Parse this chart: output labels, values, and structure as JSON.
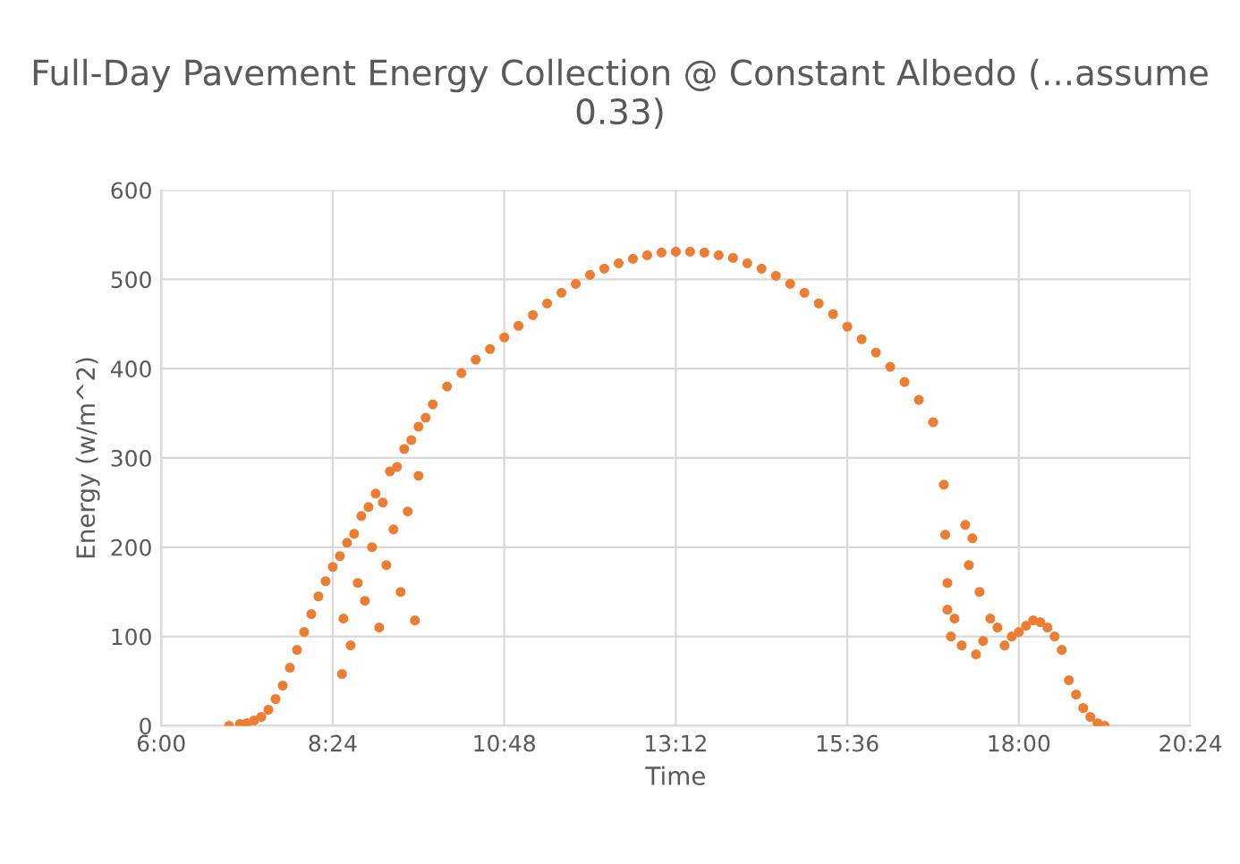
{
  "chart_data": {
    "type": "scatter",
    "title": "Full-Day Pavement Energy Collection @ Constant Albedo (...assume 0.33)",
    "xlabel": "Time",
    "ylabel": "Energy (w/m^2)",
    "marker": "circle",
    "grid": true,
    "legend": false,
    "xlim": [
      6,
      20.4
    ],
    "xticks": [
      {
        "value": 6,
        "label": "6:00"
      },
      {
        "value": 8.4,
        "label": "8:24"
      },
      {
        "value": 10.8,
        "label": "10:48"
      },
      {
        "value": 13.2,
        "label": "13:12"
      },
      {
        "value": 15.6,
        "label": "15:36"
      },
      {
        "value": 18,
        "label": "18:00"
      },
      {
        "value": 20.4,
        "label": "20:24"
      }
    ],
    "ylim": [
      0,
      600
    ],
    "yticks": [
      0,
      100,
      200,
      300,
      400,
      500,
      600
    ],
    "series": [
      {
        "color": "#ed7d31",
        "x": [
          6.95,
          7.1,
          7.2,
          7.3,
          7.4,
          7.5,
          7.6,
          7.7,
          7.8,
          7.9,
          8.0,
          8.1,
          8.2,
          8.3,
          8.4,
          8.5,
          8.53,
          8.55,
          8.6,
          8.65,
          8.7,
          8.75,
          8.8,
          8.85,
          8.9,
          8.95,
          9.0,
          9.05,
          9.1,
          9.15,
          9.2,
          9.25,
          9.3,
          9.35,
          9.4,
          9.45,
          9.5,
          9.55,
          9.6,
          9.6,
          9.7,
          9.8,
          10.0,
          10.2,
          10.4,
          10.6,
          10.8,
          11.0,
          11.2,
          11.4,
          11.6,
          11.8,
          12.0,
          12.2,
          12.4,
          12.6,
          12.8,
          13.0,
          13.2,
          13.4,
          13.6,
          13.8,
          14.0,
          14.2,
          14.4,
          14.6,
          14.8,
          15.0,
          15.2,
          15.4,
          15.6,
          15.8,
          16.0,
          16.2,
          16.4,
          16.6,
          16.8,
          16.95,
          16.97,
          17.0,
          17.0,
          17.05,
          17.1,
          17.2,
          17.25,
          17.3,
          17.35,
          17.4,
          17.45,
          17.5,
          17.6,
          17.7,
          17.8,
          17.9,
          18.0,
          18.1,
          18.2,
          18.3,
          18.4,
          18.5,
          18.6,
          18.7,
          18.8,
          18.9,
          19.0,
          19.1,
          19.2
        ],
        "values": [
          0,
          2,
          3,
          6,
          10,
          18,
          30,
          45,
          65,
          85,
          105,
          125,
          145,
          162,
          178,
          190,
          58,
          120,
          205,
          90,
          215,
          160,
          235,
          140,
          245,
          200,
          260,
          110,
          250,
          180,
          285,
          220,
          290,
          150,
          310,
          240,
          320,
          118,
          335,
          280,
          345,
          360,
          380,
          395,
          410,
          422,
          435,
          448,
          460,
          473,
          485,
          495,
          505,
          512,
          518,
          523,
          527,
          530,
          531,
          531,
          530,
          527,
          524,
          518,
          512,
          504,
          495,
          485,
          473,
          461,
          447,
          433,
          418,
          402,
          385,
          365,
          340,
          270,
          214,
          160,
          130,
          100,
          120,
          90,
          225,
          180,
          210,
          80,
          150,
          95,
          120,
          110,
          90,
          100,
          105,
          112,
          118,
          116,
          110,
          100,
          85,
          51,
          35,
          20,
          10,
          3,
          0
        ]
      }
    ]
  }
}
